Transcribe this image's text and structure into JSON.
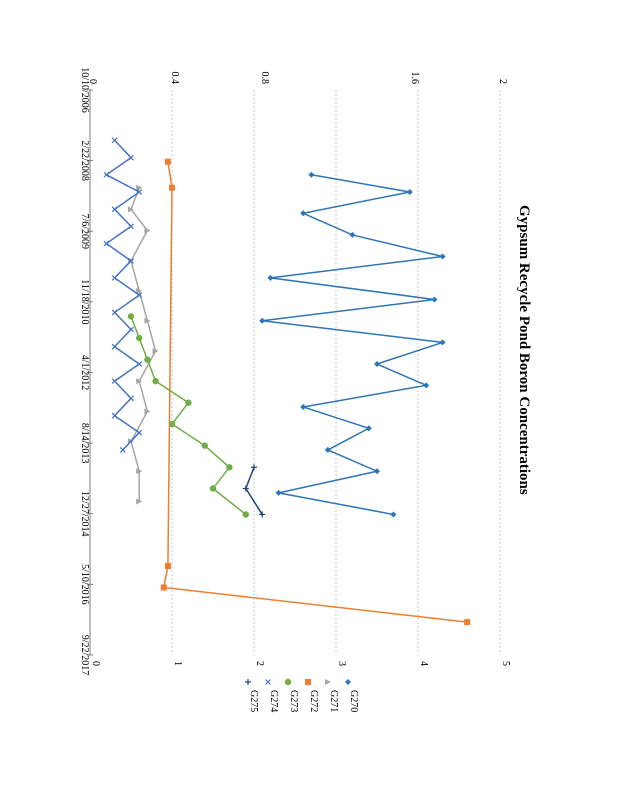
{
  "chart_data": {
    "type": "line",
    "title": "Gypsum Recycle Pond Boron Concentrations",
    "orientation": "rotated-90-clockwise",
    "x_ticks": [
      "10/10/2006",
      "2/22/2008",
      "7/6/2009",
      "11/18/2010",
      "4/1/2012",
      "8/14/2013",
      "12/27/2014",
      "5/10/2016",
      "9/22/2017"
    ],
    "x_range": [
      "2006-10-10",
      "2017-09-22"
    ],
    "y_ticks": [
      "0",
      "1",
      "2",
      "3",
      "4",
      "5"
    ],
    "y_range": [
      0,
      5
    ],
    "secondary_labels": [
      "0.8",
      "1.6",
      "2",
      "0.4",
      "0"
    ],
    "legend": [
      "G270",
      "G271",
      "G272",
      "G273",
      "G274",
      "G275"
    ],
    "series": [
      {
        "name": "G270",
        "color": "#2e75b6",
        "marker": "diamond",
        "x": [
          "2008-06-01",
          "2008-10-01",
          "2009-03-01",
          "2009-08-01",
          "2010-01-01",
          "2010-06-01",
          "2010-11-01",
          "2011-04-01",
          "2011-09-01",
          "2012-02-01",
          "2012-07-01",
          "2012-12-01",
          "2013-05-01",
          "2013-10-01",
          "2014-03-01",
          "2014-08-01",
          "2015-01-01"
        ],
        "y": [
          2.7,
          3.9,
          2.6,
          3.2,
          4.3,
          2.2,
          4.2,
          2.1,
          4.3,
          3.5,
          4.1,
          2.6,
          3.4,
          2.9,
          3.5,
          2.3,
          3.7
        ]
      },
      {
        "name": "G271",
        "color": "#a5a5a5",
        "marker": "triangle",
        "x": [
          "2008-09-01",
          "2009-02-01",
          "2009-07-01",
          "2010-02-01",
          "2010-09-01",
          "2011-04-01",
          "2011-11-01",
          "2012-06-01",
          "2013-01-01",
          "2013-08-01",
          "2014-03-01",
          "2014-10-01"
        ],
        "y": [
          0.6,
          0.5,
          0.7,
          0.5,
          0.6,
          0.7,
          0.8,
          0.6,
          0.7,
          0.5,
          0.6,
          0.6
        ]
      },
      {
        "name": "G272",
        "color": "#ed7d31",
        "marker": "square",
        "x": [
          "2008-03-01",
          "2008-09-01",
          "2016-01-01",
          "2016-06-01",
          "2017-02-01"
        ],
        "y": [
          0.95,
          1.0,
          0.95,
          0.9,
          4.6
        ]
      },
      {
        "name": "G273",
        "color": "#70ad47",
        "marker": "circle",
        "x": [
          "2011-03-01",
          "2011-08-01",
          "2012-01-01",
          "2012-06-01",
          "2012-11-01",
          "2013-04-01",
          "2013-09-01",
          "2014-02-01",
          "2014-07-01",
          "2015-01-01"
        ],
        "y": [
          0.5,
          0.6,
          0.7,
          0.8,
          1.2,
          1.0,
          1.4,
          1.7,
          1.5,
          1.9
        ]
      },
      {
        "name": "G274",
        "color": "#4472c4",
        "marker": "x",
        "x": [
          "2007-10-01",
          "2008-02-01",
          "2008-06-01",
          "2008-10-01",
          "2009-02-01",
          "2009-06-01",
          "2009-10-01",
          "2010-02-01",
          "2010-06-01",
          "2010-10-01",
          "2011-02-01",
          "2011-06-01",
          "2011-10-01",
          "2012-02-01",
          "2012-06-01",
          "2012-10-01",
          "2013-02-01",
          "2013-06-01",
          "2013-10-01"
        ],
        "y": [
          0.3,
          0.5,
          0.2,
          0.6,
          0.3,
          0.5,
          0.2,
          0.5,
          0.3,
          0.6,
          0.3,
          0.5,
          0.3,
          0.6,
          0.3,
          0.5,
          0.3,
          0.6,
          0.4
        ]
      },
      {
        "name": "G275",
        "color": "#264478",
        "marker": "plus",
        "x": [
          "2014-02-01",
          "2014-07-01",
          "2015-01-01"
        ],
        "y": [
          2.0,
          1.9,
          2.1
        ]
      }
    ],
    "xlabel": "",
    "ylabel": ""
  }
}
